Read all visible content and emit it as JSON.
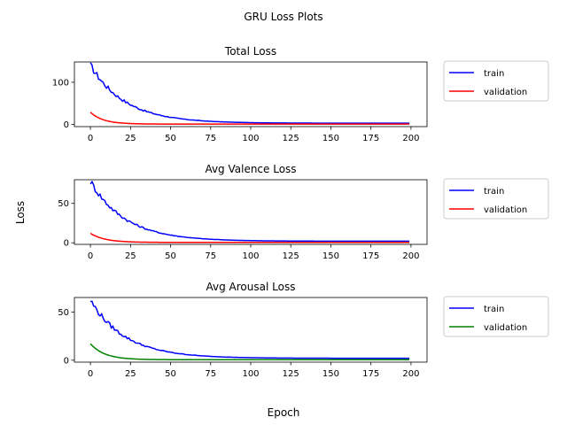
{
  "figure": {
    "suptitle": "GRU Loss Plots",
    "xlabel": "Epoch",
    "ylabel": "Loss"
  },
  "chart_data": [
    {
      "type": "line",
      "title": "Total Loss",
      "xlim": [
        -10,
        210
      ],
      "ylim": [
        -5,
        148
      ],
      "xticks": [
        0,
        25,
        50,
        75,
        100,
        125,
        150,
        175,
        200
      ],
      "yticks": [
        0,
        100
      ],
      "legend": "outside-right",
      "series": [
        {
          "name": "train",
          "color": "#0000ff",
          "start": 140,
          "end": 3,
          "tau": 22,
          "noise": 0.06
        },
        {
          "name": "validation",
          "color": "#ff0000",
          "start": 29,
          "end": 1,
          "tau": 8,
          "noise": 0.0
        }
      ]
    },
    {
      "type": "line",
      "title": "Avg Valence Loss",
      "xlim": [
        -10,
        210
      ],
      "ylim": [
        -2,
        80
      ],
      "xticks": [
        0,
        25,
        50,
        75,
        100,
        125,
        150,
        175,
        200
      ],
      "yticks": [
        0,
        50
      ],
      "legend": "outside-right",
      "series": [
        {
          "name": "train",
          "color": "#0000ff",
          "start": 78,
          "end": 2,
          "tau": 22,
          "noise": 0.06
        },
        {
          "name": "validation",
          "color": "#ff0000",
          "start": 12,
          "end": 0.5,
          "tau": 9,
          "noise": 0.0
        }
      ]
    },
    {
      "type": "line",
      "title": "Avg Arousal Loss",
      "xlim": [
        -10,
        210
      ],
      "ylim": [
        -2,
        65
      ],
      "xticks": [
        0,
        25,
        50,
        75,
        100,
        125,
        150,
        175,
        200
      ],
      "yticks": [
        0,
        50
      ],
      "legend": "outside-right",
      "series": [
        {
          "name": "train",
          "color": "#0000ff",
          "start": 62,
          "end": 2,
          "tau": 22,
          "noise": 0.06
        },
        {
          "name": "validation",
          "color": "#008000",
          "start": 17,
          "end": 0.5,
          "tau": 9,
          "noise": 0.0
        }
      ]
    }
  ]
}
